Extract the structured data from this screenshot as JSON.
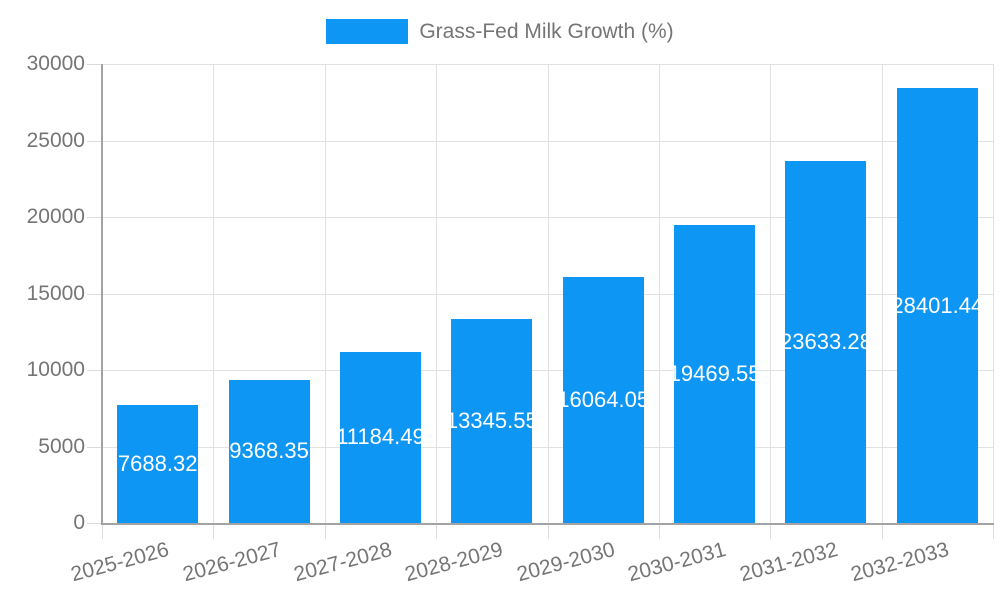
{
  "chart_data": {
    "type": "bar",
    "title": "Grass-Fed Milk Growth (%)",
    "legend": {
      "label": "Grass-Fed Milk Growth (%)",
      "position": "top",
      "swatch_color": "#0e96f4"
    },
    "categories": [
      "2025-2026",
      "2026-2027",
      "2027-2028",
      "2028-2029",
      "2029-2030",
      "2030-2031",
      "2031-2032",
      "2032-2033"
    ],
    "series": [
      {
        "name": "Grass-Fed Milk Growth (%)",
        "values": [
          7688.32,
          9368.35,
          11184.49,
          13345.55,
          16064.05,
          19469.55,
          23633.28,
          28401.44
        ]
      }
    ],
    "value_labels": [
      "7688.32",
      "9368.35",
      "11184.49",
      "13345.55",
      "16064.05",
      "19469.55",
      "23633.28",
      "28401.44"
    ],
    "xlabel": "",
    "ylabel": "",
    "ylim": [
      0,
      30000
    ],
    "yticks": [
      0,
      5000,
      10000,
      15000,
      20000,
      25000,
      30000
    ],
    "ytick_labels": [
      "0",
      "5000",
      "10000",
      "15000",
      "20000",
      "25000",
      "30000"
    ],
    "grid": true,
    "colors": {
      "bar": "#0e96f4",
      "axis": "#a3a3a3",
      "grid": "#e2e2e2",
      "tick_text": "#757575",
      "value_text": "#ffffff"
    }
  }
}
